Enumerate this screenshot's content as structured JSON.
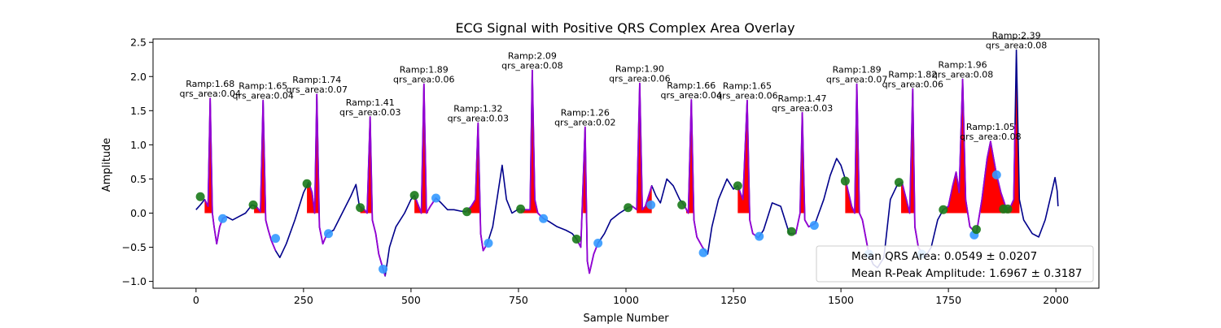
{
  "chart_data": {
    "type": "line",
    "title": "ECG Signal with Positive QRS Complex Area Overlay",
    "xlabel": "Sample Number",
    "ylabel": "Amplitude",
    "xlim": [
      -100,
      2100
    ],
    "ylim": [
      -1.1,
      2.55
    ],
    "x_ticks": [
      0,
      250,
      500,
      750,
      1000,
      1250,
      1500,
      1750,
      2000
    ],
    "y_ticks": [
      -1.0,
      -0.5,
      0.0,
      0.5,
      1.0,
      1.5,
      2.0,
      2.5
    ],
    "x_tick_labels": [
      "0",
      "250",
      "500",
      "750",
      "1000",
      "1250",
      "1500",
      "1750",
      "2000"
    ],
    "y_tick_labels": [
      "−1.0",
      "−0.5",
      "0.0",
      "0.5",
      "1.0",
      "1.5",
      "2.0",
      "2.5"
    ],
    "grid": false,
    "colors": {
      "signal": "#00008b",
      "qrs_segment": "#9400d3",
      "area_fill": "#ff0000",
      "onset_marker": "#1a7a1a",
      "offset_marker": "#3399ff"
    },
    "signal_keypoints": [
      [
        0,
        0.05
      ],
      [
        10,
        0.12
      ],
      [
        20,
        0.2
      ],
      [
        28,
        0.1
      ],
      [
        33,
        1.68
      ],
      [
        38,
        0.0
      ],
      [
        42,
        -0.2
      ],
      [
        48,
        -0.45
      ],
      [
        55,
        -0.2
      ],
      [
        62,
        -0.08
      ],
      [
        70,
        -0.05
      ],
      [
        85,
        -0.1
      ],
      [
        100,
        -0.05
      ],
      [
        115,
        0.0
      ],
      [
        130,
        0.12
      ],
      [
        140,
        0.1
      ],
      [
        150,
        0.02
      ],
      [
        156,
        1.65
      ],
      [
        162,
        -0.1
      ],
      [
        168,
        -0.25
      ],
      [
        175,
        -0.4
      ],
      [
        185,
        -0.55
      ],
      [
        195,
        -0.65
      ],
      [
        210,
        -0.45
      ],
      [
        230,
        -0.1
      ],
      [
        250,
        0.3
      ],
      [
        262,
        0.45
      ],
      [
        270,
        0.3
      ],
      [
        276,
        0.0
      ],
      [
        281,
        1.74
      ],
      [
        287,
        -0.2
      ],
      [
        295,
        -0.45
      ],
      [
        305,
        -0.3
      ],
      [
        320,
        -0.25
      ],
      [
        340,
        0.0
      ],
      [
        360,
        0.25
      ],
      [
        372,
        0.42
      ],
      [
        380,
        0.1
      ],
      [
        392,
        0.05
      ],
      [
        398,
        0.0
      ],
      [
        405,
        1.41
      ],
      [
        410,
        -0.1
      ],
      [
        418,
        -0.3
      ],
      [
        425,
        -0.6
      ],
      [
        435,
        -0.82
      ],
      [
        440,
        -0.92
      ],
      [
        450,
        -0.5
      ],
      [
        465,
        -0.2
      ],
      [
        485,
        0.0
      ],
      [
        500,
        0.2
      ],
      [
        508,
        0.26
      ],
      [
        515,
        0.15
      ],
      [
        524,
        0.0
      ],
      [
        530,
        1.89
      ],
      [
        536,
        0.0
      ],
      [
        545,
        0.1
      ],
      [
        558,
        0.22
      ],
      [
        570,
        0.15
      ],
      [
        585,
        0.05
      ],
      [
        600,
        0.05
      ],
      [
        615,
        0.03
      ],
      [
        628,
        0.02
      ],
      [
        640,
        0.1
      ],
      [
        650,
        0.2
      ],
      [
        656,
        1.32
      ],
      [
        662,
        -0.3
      ],
      [
        668,
        -0.55
      ],
      [
        678,
        -0.44
      ],
      [
        690,
        -0.2
      ],
      [
        700,
        0.2
      ],
      [
        712,
        0.7
      ],
      [
        722,
        0.2
      ],
      [
        735,
        0.0
      ],
      [
        750,
        0.06
      ],
      [
        768,
        0.05
      ],
      [
        777,
        0.05
      ],
      [
        782,
        2.09
      ],
      [
        788,
        0.2
      ],
      [
        795,
        0.0
      ],
      [
        808,
        -0.08
      ],
      [
        820,
        -0.12
      ],
      [
        840,
        -0.2
      ],
      [
        860,
        -0.25
      ],
      [
        875,
        -0.3
      ],
      [
        885,
        -0.38
      ],
      [
        895,
        -0.5
      ],
      [
        905,
        1.26
      ],
      [
        910,
        -0.7
      ],
      [
        915,
        -0.88
      ],
      [
        925,
        -0.6
      ],
      [
        935,
        -0.44
      ],
      [
        950,
        -0.3
      ],
      [
        965,
        -0.1
      ],
      [
        985,
        0.0
      ],
      [
        1005,
        0.08
      ],
      [
        1015,
        0.1
      ],
      [
        1025,
        0.05
      ],
      [
        1032,
        1.9
      ],
      [
        1038,
        0.05
      ],
      [
        1045,
        0.1
      ],
      [
        1060,
        0.4
      ],
      [
        1070,
        0.25
      ],
      [
        1080,
        0.15
      ],
      [
        1095,
        0.5
      ],
      [
        1110,
        0.4
      ],
      [
        1125,
        0.2
      ],
      [
        1135,
        0.12
      ],
      [
        1145,
        0.0
      ],
      [
        1152,
        1.66
      ],
      [
        1158,
        -0.1
      ],
      [
        1165,
        -0.35
      ],
      [
        1178,
        -0.5
      ],
      [
        1190,
        -0.6
      ],
      [
        1200,
        -0.2
      ],
      [
        1215,
        0.2
      ],
      [
        1235,
        0.5
      ],
      [
        1250,
        0.35
      ],
      [
        1260,
        0.4
      ],
      [
        1272,
        0.2
      ],
      [
        1282,
        1.65
      ],
      [
        1288,
        -0.1
      ],
      [
        1295,
        -0.3
      ],
      [
        1308,
        -0.36
      ],
      [
        1320,
        -0.25
      ],
      [
        1340,
        0.15
      ],
      [
        1360,
        0.1
      ],
      [
        1380,
        -0.3
      ],
      [
        1395,
        -0.3
      ],
      [
        1405,
        0.0
      ],
      [
        1410,
        1.47
      ],
      [
        1416,
        -0.1
      ],
      [
        1425,
        -0.2
      ],
      [
        1440,
        -0.15
      ],
      [
        1460,
        0.2
      ],
      [
        1475,
        0.55
      ],
      [
        1490,
        0.8
      ],
      [
        1500,
        0.7
      ],
      [
        1510,
        0.5
      ],
      [
        1525,
        0.1
      ],
      [
        1532,
        0.0
      ],
      [
        1537,
        1.89
      ],
      [
        1543,
        0.0
      ],
      [
        1550,
        -0.1
      ],
      [
        1565,
        -0.6
      ],
      [
        1575,
        -0.75
      ],
      [
        1585,
        -0.8
      ],
      [
        1600,
        -0.65
      ],
      [
        1615,
        0.2
      ],
      [
        1630,
        0.4
      ],
      [
        1642,
        0.45
      ],
      [
        1652,
        0.2
      ],
      [
        1660,
        0.0
      ],
      [
        1667,
        1.82
      ],
      [
        1672,
        -0.2
      ],
      [
        1680,
        -0.5
      ],
      [
        1695,
        -0.65
      ],
      [
        1710,
        -0.5
      ],
      [
        1725,
        -0.1
      ],
      [
        1738,
        0.05
      ],
      [
        1750,
        0.1
      ],
      [
        1760,
        0.4
      ],
      [
        1768,
        0.6
      ],
      [
        1775,
        0.3
      ],
      [
        1783,
        1.96
      ],
      [
        1790,
        0.2
      ],
      [
        1800,
        -0.2
      ],
      [
        1815,
        -0.3
      ],
      [
        1828,
        0.2
      ],
      [
        1840,
        0.8
      ],
      [
        1848,
        1.05
      ],
      [
        1855,
        0.8
      ],
      [
        1862,
        0.56
      ],
      [
        1872,
        0.3
      ],
      [
        1885,
        0.06
      ],
      [
        1895,
        0.1
      ],
      [
        1902,
        0.2
      ],
      [
        1908,
        2.39
      ],
      [
        1915,
        0.2
      ],
      [
        1925,
        -0.1
      ],
      [
        1945,
        -0.3
      ],
      [
        1960,
        -0.35
      ],
      [
        1975,
        -0.1
      ],
      [
        1990,
        0.3
      ],
      [
        1998,
        0.52
      ],
      [
        2003,
        0.32
      ],
      [
        2005,
        0.1
      ]
    ],
    "qrs_segments": [
      [
        20,
        70
      ],
      [
        140,
        185
      ],
      [
        262,
        310
      ],
      [
        380,
        440
      ],
      [
        508,
        558
      ],
      [
        628,
        678
      ],
      [
        750,
        808
      ],
      [
        885,
        935
      ],
      [
        1005,
        1060
      ],
      [
        1128,
        1180
      ],
      [
        1260,
        1310
      ],
      [
        1385,
        1440
      ],
      [
        1510,
        1570
      ],
      [
        1635,
        1700
      ],
      [
        1738,
        1815
      ],
      [
        1810,
        1905
      ]
    ],
    "qrs_complexes": [
      {
        "onset_x": 10,
        "onset_y": 0.24,
        "offset_x": 62,
        "offset_y": -0.08,
        "area_x": [
          20,
          55
        ],
        "peak_x": 33,
        "label_x": 33,
        "label_y": 1.68,
        "ramp": "Ramp:1.68",
        "area": "qrs_area:0.04"
      },
      {
        "onset_x": 133,
        "onset_y": 0.12,
        "offset_x": 185,
        "offset_y": -0.37,
        "area_x": [
          135,
          160
        ],
        "peak_x": 156,
        "label_x": 156,
        "label_y": 1.65,
        "ramp": "Ramp:1.65",
        "area": "qrs_area:0.04"
      },
      {
        "onset_x": 258,
        "onset_y": 0.43,
        "offset_x": 308,
        "offset_y": -0.3,
        "area_x": [
          258,
          287
        ],
        "peak_x": 281,
        "label_x": 281,
        "label_y": 1.74,
        "ramp": "Ramp:1.74",
        "area": "qrs_area:0.07"
      },
      {
        "onset_x": 382,
        "onset_y": 0.08,
        "offset_x": 435,
        "offset_y": -0.82,
        "area_x": [
          382,
          410
        ],
        "peak_x": 405,
        "label_x": 405,
        "label_y": 1.41,
        "ramp": "Ramp:1.41",
        "area": "qrs_area:0.03"
      },
      {
        "onset_x": 508,
        "onset_y": 0.26,
        "offset_x": 558,
        "offset_y": 0.22,
        "area_x": [
          508,
          540
        ],
        "peak_x": 530,
        "label_x": 530,
        "label_y": 1.89,
        "ramp": "Ramp:1.89",
        "area": "qrs_area:0.06"
      },
      {
        "onset_x": 630,
        "onset_y": 0.02,
        "offset_x": 680,
        "offset_y": -0.44,
        "area_x": [
          632,
          660
        ],
        "peak_x": 656,
        "label_x": 656,
        "label_y": 1.32,
        "ramp": "Ramp:1.32",
        "area": "qrs_area:0.03"
      },
      {
        "onset_x": 755,
        "onset_y": 0.06,
        "offset_x": 808,
        "offset_y": -0.08,
        "area_x": [
          755,
          800
        ],
        "peak_x": 782,
        "label_x": 782,
        "label_y": 2.09,
        "ramp": "Ramp:2.09",
        "area": "qrs_area:0.08"
      },
      {
        "onset_x": 885,
        "onset_y": -0.38,
        "offset_x": 935,
        "offset_y": -0.44,
        "area_x": [
          900,
          910
        ],
        "peak_x": 905,
        "label_x": 905,
        "label_y": 1.26,
        "ramp": "Ramp:1.26",
        "area": "qrs_area:0.02"
      },
      {
        "onset_x": 1005,
        "onset_y": 0.08,
        "offset_x": 1058,
        "offset_y": 0.12,
        "area_x": [
          1025,
          1060
        ],
        "peak_x": 1032,
        "label_x": 1032,
        "label_y": 1.9,
        "ramp": "Ramp:1.90",
        "area": "qrs_area:0.06"
      },
      {
        "onset_x": 1130,
        "onset_y": 0.12,
        "offset_x": 1180,
        "offset_y": -0.58,
        "area_x": [
          1140,
          1158
        ],
        "peak_x": 1152,
        "label_x": 1152,
        "label_y": 1.66,
        "ramp": "Ramp:1.66",
        "area": "qrs_area:0.04"
      },
      {
        "onset_x": 1260,
        "onset_y": 0.4,
        "offset_x": 1310,
        "offset_y": -0.34,
        "area_x": [
          1260,
          1288
        ],
        "peak_x": 1282,
        "label_x": 1282,
        "label_y": 1.65,
        "ramp": "Ramp:1.65",
        "area": "qrs_area:0.06"
      },
      {
        "onset_x": 1385,
        "onset_y": -0.27,
        "offset_x": 1438,
        "offset_y": -0.18,
        "area_x": [
          1403,
          1415
        ],
        "peak_x": 1410,
        "label_x": 1410,
        "label_y": 1.47,
        "ramp": "Ramp:1.47",
        "area": "qrs_area:0.03"
      },
      {
        "onset_x": 1510,
        "onset_y": 0.47,
        "offset_x": 1565,
        "offset_y": -0.6,
        "area_x": [
          1510,
          1545
        ],
        "peak_x": 1537,
        "label_x": 1537,
        "label_y": 1.89,
        "ramp": "Ramp:1.89",
        "area": "qrs_area:0.07"
      },
      {
        "onset_x": 1635,
        "onset_y": 0.45,
        "offset_x": 1688,
        "offset_y": -0.6,
        "area_x": [
          1640,
          1670
        ],
        "peak_x": 1667,
        "label_x": 1667,
        "label_y": 1.82,
        "ramp": "Ramp:1.82",
        "area": "qrs_area:0.06"
      },
      {
        "onset_x": 1738,
        "onset_y": 0.05,
        "offset_x": 1810,
        "offset_y": -0.32,
        "area_x": [
          1745,
          1795
        ],
        "peak_x": 1783,
        "label_x": 1783,
        "label_y": 1.96,
        "ramp": "Ramp:1.96",
        "area": "qrs_area:0.08"
      },
      {
        "onset_x": 1878,
        "onset_y": 0.06,
        "offset_x": 1862,
        "offset_y": 0.56,
        "area_x": [
          1825,
          1915
        ],
        "peak_x": 1848,
        "label_x": 1848,
        "label_y": 1.05,
        "ramp": "Ramp:1.05",
        "area": "qrs_area:0.08",
        "extra_onset_x": 1815,
        "extra_onset_y": -0.24
      },
      {
        "onset_x": 1888,
        "onset_y": 0.06,
        "offset_x": 1888,
        "offset_y": 0.06,
        "area_x": [
          1890,
          1915
        ],
        "peak_x": 1908,
        "label_x": 1908,
        "label_y": 2.39,
        "ramp": "Ramp:2.39",
        "area": "qrs_area:0.08"
      }
    ],
    "legend": {
      "location": "lower-right",
      "entries": [
        "Mean QRS Area: 0.0549 ± 0.0207",
        "Mean R-Peak Amplitude: 1.6967 ± 0.3187"
      ]
    }
  }
}
